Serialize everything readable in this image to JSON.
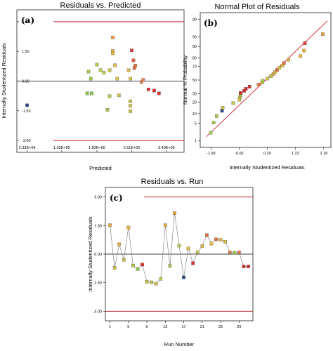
{
  "chart_data": [
    {
      "id": "a",
      "type": "scatter",
      "panel_label": "(a)",
      "title": "Residuals vs. Predicted",
      "xlabel": "Predicted",
      "ylabel": "Internally Studentized Residuals",
      "xlim": [
        0,
        380000
      ],
      "ylim": [
        -3.6,
        3.6
      ],
      "x_ticks": [
        23300,
        102000,
        182000,
        261000,
        340000
      ],
      "x_tick_labels": [
        "2.33E+04",
        "1.02E+05",
        "1.82E+05",
        "2.61E+05",
        "3.40E+05"
      ],
      "y_ticks": [
        3.0,
        1.5,
        0.0,
        -1.5,
        -3.0
      ],
      "y_tick_labels": [
        "3.00",
        "1.50",
        "0.00",
        "-1.50",
        "-3.00"
      ],
      "ref_lines": [
        3.0,
        0.0,
        -3.0
      ],
      "points": [
        {
          "x": 23300,
          "y": -1.22,
          "c": "#2c4a8c"
        },
        {
          "x": 163000,
          "y": 0.48,
          "c": "#a8c64a"
        },
        {
          "x": 168000,
          "y": 0.12,
          "c": "#9ccc4a"
        },
        {
          "x": 160000,
          "y": -0.62,
          "c": "#8ac44a"
        },
        {
          "x": 170000,
          "y": -0.62,
          "c": "#8ac44a"
        },
        {
          "x": 182000,
          "y": 0.83,
          "c": "#b8cc48"
        },
        {
          "x": 190000,
          "y": 0.55,
          "c": "#bccc48"
        },
        {
          "x": 198000,
          "y": 0.42,
          "c": "#c2ca46"
        },
        {
          "x": 206000,
          "y": -1.45,
          "c": "#a6c248"
        },
        {
          "x": 211000,
          "y": 0.55,
          "c": "#c4c846"
        },
        {
          "x": 211000,
          "y": -0.76,
          "c": "#b4c648"
        },
        {
          "x": 218000,
          "y": 2.2,
          "c": "#e8a040"
        },
        {
          "x": 218000,
          "y": 1.52,
          "c": "#e8b040"
        },
        {
          "x": 218000,
          "y": 1.4,
          "c": "#e8b040"
        },
        {
          "x": 223000,
          "y": 0.8,
          "c": "#e0b844"
        },
        {
          "x": 228000,
          "y": 0.12,
          "c": "#d8c044"
        },
        {
          "x": 232000,
          "y": -0.72,
          "c": "#ccc044"
        },
        {
          "x": 254000,
          "y": 0.55,
          "c": "#e0b844"
        },
        {
          "x": 258000,
          "y": 0.12,
          "c": "#d8c044"
        },
        {
          "x": 258000,
          "y": -1.02,
          "c": "#c8c046"
        },
        {
          "x": 258000,
          "y": -1.25,
          "c": "#c8c046"
        },
        {
          "x": 258000,
          "y": -1.52,
          "c": "#c8c046"
        },
        {
          "x": 261000,
          "y": 1.55,
          "c": "#e04040"
        },
        {
          "x": 265000,
          "y": 1.05,
          "c": "#e06040"
        },
        {
          "x": 267000,
          "y": 0.65,
          "c": "#e07040"
        },
        {
          "x": 269000,
          "y": 0.78,
          "c": "#e07040"
        },
        {
          "x": 283000,
          "y": -0.05,
          "c": "#e88048"
        },
        {
          "x": 287000,
          "y": 0.06,
          "c": "#e88048"
        },
        {
          "x": 299000,
          "y": -0.42,
          "c": "#d83030"
        },
        {
          "x": 312000,
          "y": -0.48,
          "c": "#d83030"
        },
        {
          "x": 323000,
          "y": -0.62,
          "c": "#d83030"
        }
      ]
    },
    {
      "id": "b",
      "type": "scatter",
      "panel_label": "(b)",
      "title": "Normal Plot of Residuals",
      "xlabel": "Internally Studentized Residuals",
      "ylabel": "Normal % Probability",
      "xlim": [
        -1.95,
        2.42
      ],
      "ylim": [
        0.5,
        99.5
      ],
      "y_scale": "normal-probability",
      "x_ticks": [
        -1.59,
        -0.65,
        0.29,
        1.23,
        2.18
      ],
      "x_tick_labels": [
        "-1.59",
        "-0.65",
        "0.29",
        "1.23",
        "2.18"
      ],
      "y_ticks": [
        1,
        5,
        10,
        20,
        30,
        50,
        70,
        80,
        90,
        95,
        99
      ],
      "y_tick_labels": [
        "1",
        "5",
        "10",
        "20",
        "30",
        "50",
        "70",
        "80",
        "90",
        "95",
        "99"
      ],
      "fit_line": [
        [
          -1.75,
          1.5
        ],
        [
          2.3,
          98.8
        ]
      ],
      "points": [
        {
          "x": -1.6,
          "y": 2.2,
          "c": "#9ccc4a"
        },
        {
          "x": -1.5,
          "y": 5.2,
          "c": "#a8c64a"
        },
        {
          "x": -1.4,
          "y": 8.5,
          "c": "#b0c648"
        },
        {
          "x": -1.22,
          "y": 12,
          "c": "#2c4a8c"
        },
        {
          "x": -1.2,
          "y": 14.5,
          "c": "#c8c046"
        },
        {
          "x": -0.85,
          "y": 19,
          "c": "#bccc48"
        },
        {
          "x": -0.64,
          "y": 22.5,
          "c": "#d8c044"
        },
        {
          "x": -0.62,
          "y": 25.5,
          "c": "#ccc044"
        },
        {
          "x": -0.6,
          "y": 28.5,
          "c": "#a8c64a"
        },
        {
          "x": -0.6,
          "y": 31,
          "c": "#d83030"
        },
        {
          "x": -0.48,
          "y": 34,
          "c": "#d83030"
        },
        {
          "x": -0.42,
          "y": 37,
          "c": "#d83030"
        },
        {
          "x": -0.3,
          "y": 40,
          "c": "#d83030"
        },
        {
          "x": 0.0,
          "y": 43,
          "c": "#e88048"
        },
        {
          "x": 0.12,
          "y": 46,
          "c": "#d8c044"
        },
        {
          "x": 0.14,
          "y": 49,
          "c": "#9ccc4a"
        },
        {
          "x": 0.3,
          "y": 52,
          "c": "#c4c846"
        },
        {
          "x": 0.42,
          "y": 56,
          "c": "#bccc48"
        },
        {
          "x": 0.5,
          "y": 59,
          "c": "#e0b844"
        },
        {
          "x": 0.55,
          "y": 62,
          "c": "#e0b844"
        },
        {
          "x": 0.62,
          "y": 65,
          "c": "#e07040"
        },
        {
          "x": 0.7,
          "y": 68,
          "c": "#d8c044"
        },
        {
          "x": 0.8,
          "y": 71,
          "c": "#e0b844"
        },
        {
          "x": 0.85,
          "y": 74,
          "c": "#e07040"
        },
        {
          "x": 1.0,
          "y": 78,
          "c": "#e0b844"
        },
        {
          "x": 1.4,
          "y": 82,
          "c": "#e8b040"
        },
        {
          "x": 1.52,
          "y": 87,
          "c": "#e8b040"
        },
        {
          "x": 1.55,
          "y": 92,
          "c": "#e04040"
        },
        {
          "x": 2.15,
          "y": 96,
          "c": "#e8a040"
        }
      ]
    },
    {
      "id": "c",
      "type": "line",
      "panel_label": "(c)",
      "title": "Residuals vs. Run",
      "xlabel": "Run Number",
      "ylabel": "Internally Studentized Residuals",
      "xlim": [
        0,
        32
      ],
      "ylim": [
        -3.5,
        3.5
      ],
      "x_ticks": [
        1,
        5,
        9,
        13,
        17,
        21,
        25,
        29
      ],
      "x_tick_labels": [
        "1",
        "5",
        "9",
        "13",
        "17",
        "21",
        "25",
        "29"
      ],
      "y_ticks": [
        3.0,
        1.5,
        0.0,
        -1.5,
        -3.0
      ],
      "y_tick_labels": [
        "3.00",
        "1.50",
        "0.00",
        "-1.50",
        "-3.00"
      ],
      "ref_lines": [
        3.0,
        0.0,
        -3.0
      ],
      "x": [
        1,
        2,
        3,
        4,
        5,
        6,
        7,
        8,
        9,
        10,
        11,
        12,
        13,
        14,
        15,
        16,
        17,
        18,
        19,
        20,
        21,
        22,
        23,
        24,
        25,
        26,
        27,
        28,
        29,
        30,
        31
      ],
      "y": [
        1.52,
        -0.72,
        0.52,
        -0.3,
        1.4,
        -0.6,
        -0.78,
        -0.55,
        -1.45,
        -1.48,
        -1.55,
        -1.3,
        1.52,
        -0.62,
        2.15,
        0.45,
        -1.22,
        0.3,
        -0.48,
        0.1,
        0.42,
        1.0,
        0.55,
        0.78,
        0.75,
        0.65,
        0.1,
        0.08,
        0.1,
        -0.65,
        -0.65
      ],
      "colors": [
        "#e8b040",
        "#c8c046",
        "#e8b040",
        "#c8c046",
        "#e8b040",
        "#a6c248",
        "#8ac44a",
        "#d83030",
        "#c8c046",
        "#b4c648",
        "#c8c046",
        "#c2ca46",
        "#e8b040",
        "#a8c64a",
        "#e8a040",
        "#bccc48",
        "#2c4a8c",
        "#d8c044",
        "#d83030",
        "#c4c846",
        "#e0b844",
        "#e07040",
        "#e0b844",
        "#e07040",
        "#e0b844",
        "#d8c044",
        "#e88048",
        "#9ccc4a",
        "#e88048",
        "#d83030",
        "#d83030"
      ]
    }
  ]
}
